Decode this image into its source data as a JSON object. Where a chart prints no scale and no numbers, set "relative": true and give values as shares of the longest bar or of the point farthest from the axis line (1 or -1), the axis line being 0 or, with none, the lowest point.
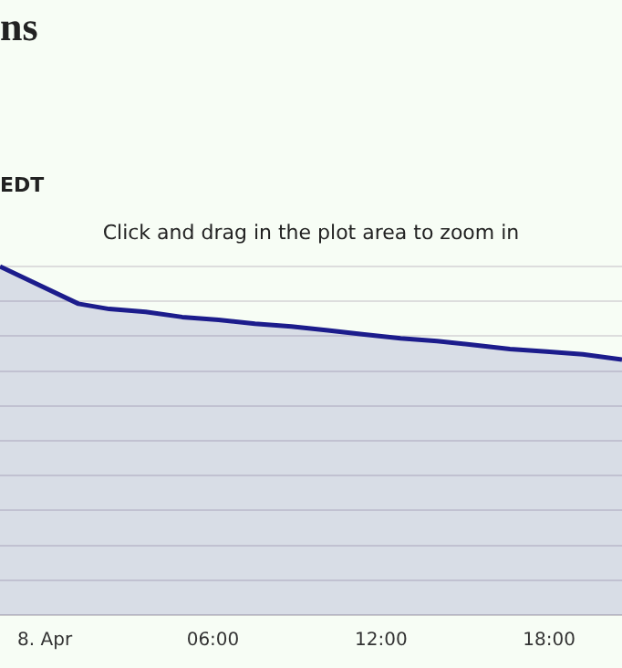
{
  "chart_data": {
    "type": "area",
    "title": "ns",
    "subtitle": "EDT",
    "annotations": [
      "Click and drag in the plot area to zoom in"
    ],
    "relative": true,
    "x": [
      -1.6,
      1.2,
      2.3,
      3.6,
      4.9,
      6.2,
      7.5,
      8.8,
      10.1,
      11.4,
      12.7,
      14.0,
      15.3,
      16.6,
      17.9,
      19.2,
      20.6
    ],
    "series": [
      {
        "color": "#1c1c8c",
        "values": [
          1.0,
          0.893,
          0.878,
          0.87,
          0.855,
          0.847,
          0.836,
          0.828,
          0.817,
          0.805,
          0.794,
          0.786,
          0.775,
          0.763,
          0.756,
          0.748,
          0.733
        ]
      }
    ],
    "xlim": [
      -1.6,
      20.6
    ],
    "xticks": [
      {
        "value": 0,
        "label": "8. Apr"
      },
      {
        "value": 6,
        "label": "06:00"
      },
      {
        "value": 12,
        "label": "12:00"
      },
      {
        "value": 18,
        "label": "18:00"
      }
    ],
    "grid": "y",
    "legend": false,
    "marker": "none",
    "line_style": "solid"
  }
}
